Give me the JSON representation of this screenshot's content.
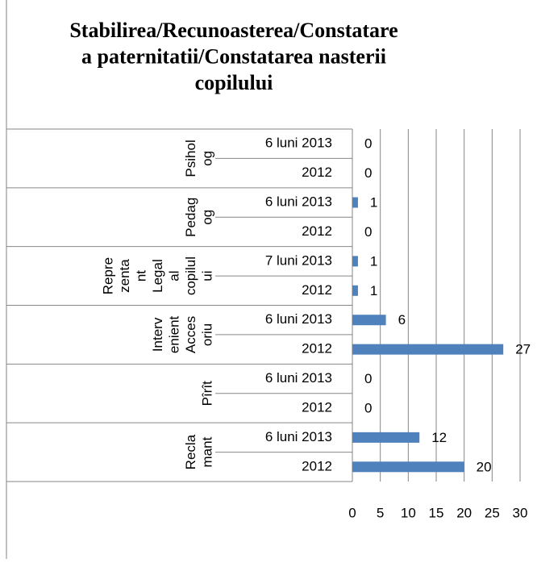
{
  "chart_data": {
    "type": "bar",
    "title": [
      "Stabilirea/Recunoasterea/Constatare",
      "a paternitatii/Constatarea nasterii",
      "copilului"
    ],
    "groups": [
      {
        "lines": [
          "Psihol",
          "og"
        ]
      },
      {
        "lines": [
          "Pedag",
          "og"
        ]
      },
      {
        "lines": [
          "Repre",
          "zenta",
          "nt",
          "Legal",
          "al",
          "copilul",
          "ui"
        ]
      },
      {
        "lines": [
          "Interv",
          "enient",
          "Acces",
          "oriu"
        ]
      },
      {
        "lines": [
          "Pîrît"
        ]
      },
      {
        "lines": [
          "Recla",
          "mant"
        ]
      }
    ],
    "categories": [
      "6 luni 2013",
      "2012",
      "6 luni 2013",
      "2012",
      "7 luni 2013",
      "2012",
      "6 luni 2013",
      "2012",
      "6 luni 2013",
      "2012",
      "6 luni 2013",
      "2012"
    ],
    "values": [
      0,
      0,
      1,
      0,
      1,
      1,
      6,
      27,
      0,
      0,
      12,
      20
    ],
    "color": "#4f81bd",
    "xlim": [
      0,
      30
    ],
    "xticks": [
      0,
      5,
      10,
      15,
      20,
      25,
      30
    ],
    "grid": true
  }
}
